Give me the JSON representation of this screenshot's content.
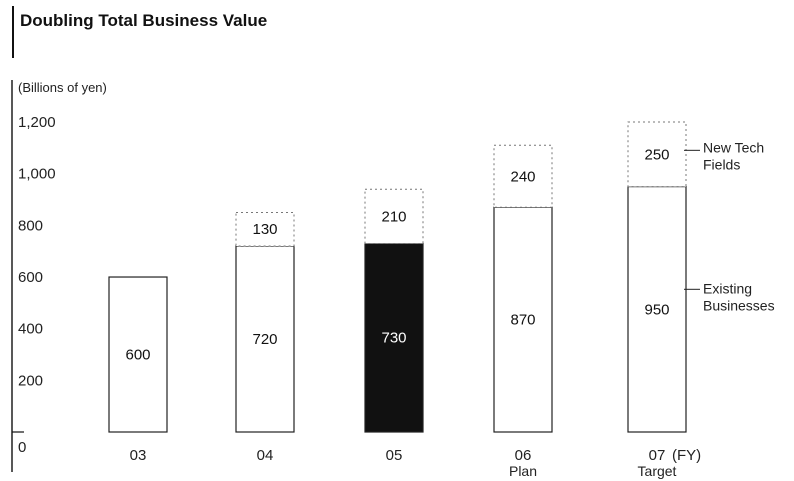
{
  "title": "Doubling Total Business Value",
  "chart_data": {
    "type": "bar",
    "stacked": true,
    "y_unit_label": "(Billions of yen)",
    "x_unit_label": "(FY)",
    "categories": [
      "03",
      "04",
      "05",
      "06",
      "07"
    ],
    "category_sublabels": [
      "",
      "",
      "",
      "Plan",
      "Target"
    ],
    "yticks": [
      0,
      200,
      400,
      600,
      800,
      "1,000",
      "1,200"
    ],
    "ylim": [
      0,
      1250
    ],
    "series": [
      {
        "name": "Existing Businesses",
        "values": [
          600,
          720,
          730,
          870,
          950
        ]
      },
      {
        "name": "New Tech Fields",
        "values": [
          null,
          130,
          210,
          240,
          250
        ]
      }
    ],
    "annotations": [
      "New Tech Fields",
      "Existing Businesses"
    ],
    "highlight_category": "05",
    "colors": {
      "highlight": "#111111",
      "default_fill": "#ffffff",
      "outline": "#222222"
    }
  }
}
